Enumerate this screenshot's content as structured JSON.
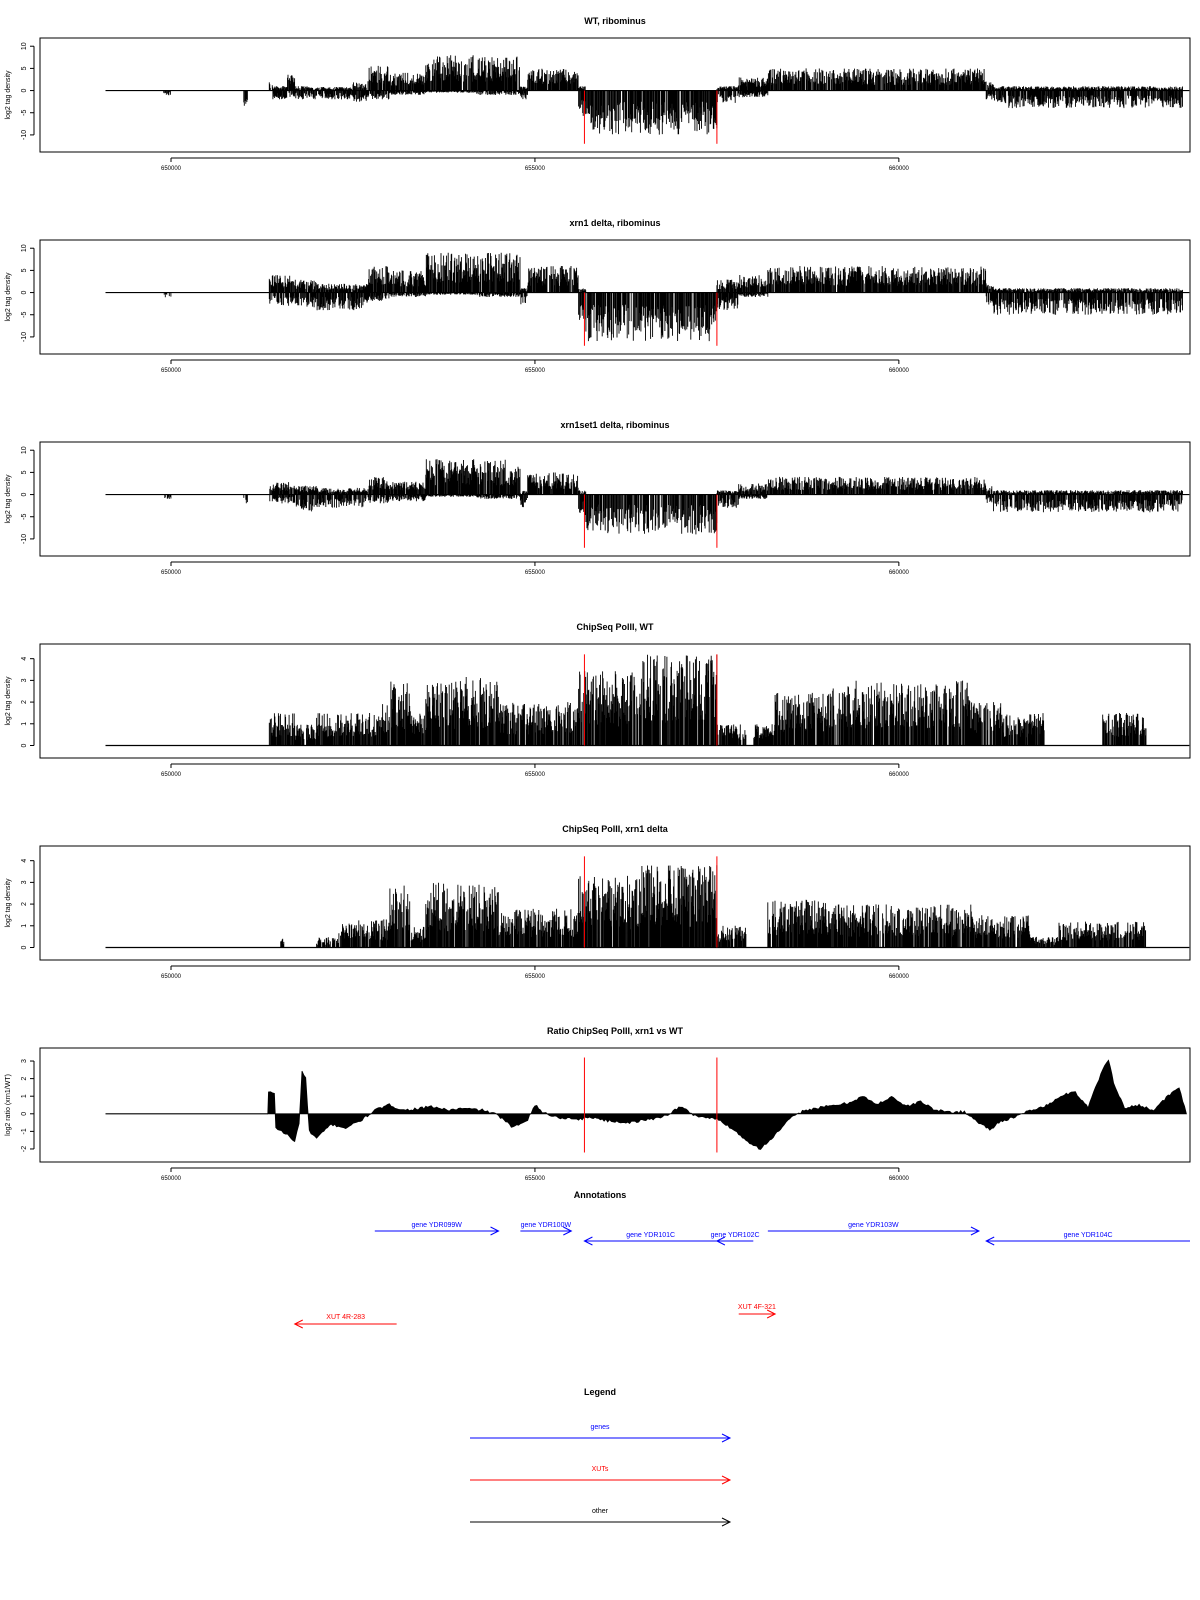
{
  "chart_data": [
    {
      "type": "bar",
      "title": "WT, ribominus",
      "ylabel": "log2 tag density",
      "xlim": [
        648200,
        664000
      ],
      "ylim": [
        -12.5,
        10.5
      ],
      "yticks": [
        10,
        5,
        0,
        -5,
        -10
      ],
      "ytick_labels": [
        "10",
        "5",
        "0",
        "-5",
        "-10"
      ],
      "xticks": [
        650000,
        655000,
        660000
      ],
      "xtick_labels": [
        "650000",
        "655000",
        "660000"
      ],
      "baseline_x": [
        649100,
        663990
      ],
      "vlines_red": [
        655680,
        657500
      ],
      "vline_range": [
        -12,
        0
      ],
      "profile": [
        [
          649000,
          649900,
          0,
          0
        ],
        [
          649900,
          650000,
          0,
          -1.2
        ],
        [
          650000,
          651000,
          0,
          0
        ],
        [
          651000,
          651050,
          0,
          -4
        ],
        [
          651350,
          651400,
          2,
          0
        ],
        [
          651400,
          651600,
          1,
          -2
        ],
        [
          651600,
          651700,
          4,
          -1.5
        ],
        [
          651700,
          652000,
          1,
          -2
        ],
        [
          652000,
          652500,
          0.8,
          -2
        ],
        [
          652500,
          652700,
          2,
          -2.5
        ],
        [
          652700,
          653000,
          6,
          -2
        ],
        [
          653000,
          653500,
          4,
          -1
        ],
        [
          653500,
          654200,
          8,
          -0.5
        ],
        [
          654200,
          654800,
          8,
          -1
        ],
        [
          654800,
          654900,
          1,
          -2
        ],
        [
          654900,
          655600,
          5,
          0
        ],
        [
          655600,
          655700,
          1,
          -6
        ],
        [
          655700,
          657500,
          0,
          -10
        ],
        [
          657500,
          657800,
          1,
          -3
        ],
        [
          657800,
          658200,
          3,
          -1.5
        ],
        [
          658200,
          659400,
          5,
          0
        ],
        [
          659400,
          661200,
          5,
          0
        ],
        [
          661200,
          661300,
          2,
          -2
        ],
        [
          661300,
          663900,
          1,
          -4
        ]
      ]
    },
    {
      "type": "bar",
      "title": "xrn1 delta, ribominus",
      "ylabel": "log2 tag density",
      "xlim": [
        648200,
        664000
      ],
      "ylim": [
        -12.5,
        10.5
      ],
      "yticks": [
        10,
        5,
        0,
        -5,
        -10
      ],
      "ytick_labels": [
        "10",
        "5",
        "0",
        "-5",
        "-10"
      ],
      "xticks": [
        650000,
        655000,
        660000
      ],
      "xtick_labels": [
        "650000",
        "655000",
        "660000"
      ],
      "baseline_x": [
        649100,
        663990
      ],
      "vlines_red": [
        655680,
        657500
      ],
      "vline_range": [
        -12,
        0
      ],
      "profile": [
        [
          649000,
          649900,
          0,
          0
        ],
        [
          649900,
          650000,
          0,
          -1.2
        ],
        [
          650000,
          651350,
          0,
          0
        ],
        [
          651350,
          651700,
          4,
          -3
        ],
        [
          651700,
          652000,
          3,
          -3.5
        ],
        [
          652000,
          652700,
          2,
          -4
        ],
        [
          652700,
          653000,
          6,
          -2
        ],
        [
          653000,
          653500,
          5,
          -1
        ],
        [
          653500,
          654200,
          9,
          -0.5
        ],
        [
          654200,
          654800,
          9,
          -1
        ],
        [
          654800,
          654900,
          1,
          -3
        ],
        [
          654900,
          655600,
          6,
          0
        ],
        [
          655600,
          655700,
          1,
          -7
        ],
        [
          655700,
          657500,
          0,
          -11
        ],
        [
          657500,
          657800,
          3,
          -4
        ],
        [
          657800,
          658200,
          4,
          -1
        ],
        [
          658200,
          659400,
          6,
          0
        ],
        [
          659400,
          661200,
          6,
          0
        ],
        [
          661200,
          661300,
          2,
          -3
        ],
        [
          661300,
          663900,
          1,
          -5
        ]
      ]
    },
    {
      "type": "bar",
      "title": "xrn1set1 delta, ribominus",
      "ylabel": "log2 tag density",
      "xlim": [
        648200,
        664000
      ],
      "ylim": [
        -12.5,
        10.5
      ],
      "yticks": [
        10,
        5,
        0,
        -5,
        -10
      ],
      "ytick_labels": [
        "10",
        "5",
        "0",
        "-5",
        "-10"
      ],
      "xticks": [
        650000,
        655000,
        660000
      ],
      "xtick_labels": [
        "650000",
        "655000",
        "660000"
      ],
      "baseline_x": [
        649100,
        663990
      ],
      "vlines_red": [
        655680,
        657500
      ],
      "vline_range": [
        -12,
        0
      ],
      "profile": [
        [
          649000,
          649900,
          0,
          0
        ],
        [
          649900,
          650000,
          0,
          -1.2
        ],
        [
          650000,
          651000,
          0,
          0
        ],
        [
          651000,
          651050,
          0,
          -2
        ],
        [
          651350,
          651700,
          3,
          -2
        ],
        [
          651700,
          652000,
          2,
          -4
        ],
        [
          652000,
          652700,
          1.5,
          -3
        ],
        [
          652700,
          653000,
          4,
          -2
        ],
        [
          653000,
          653500,
          3,
          -1.5
        ],
        [
          653500,
          654200,
          8,
          -0.5
        ],
        [
          654200,
          654800,
          8,
          -1
        ],
        [
          654800,
          654900,
          1,
          -3
        ],
        [
          654900,
          655600,
          5,
          0
        ],
        [
          655600,
          655700,
          1,
          -5
        ],
        [
          655700,
          657500,
          0,
          -9
        ],
        [
          657500,
          657800,
          1,
          -3
        ],
        [
          657800,
          658200,
          2.5,
          -1
        ],
        [
          658200,
          659400,
          4,
          0
        ],
        [
          659400,
          661200,
          4,
          0
        ],
        [
          661200,
          661300,
          2,
          -2
        ],
        [
          661300,
          663900,
          1,
          -4
        ]
      ]
    },
    {
      "type": "bar",
      "title": "ChipSeq PolII, WT",
      "ylabel": "log2 tag density",
      "xlim": [
        648200,
        664000
      ],
      "ylim": [
        -0.3,
        4.4
      ],
      "yticks": [
        0,
        1,
        2,
        3,
        4
      ],
      "ytick_labels": [
        "0",
        "1",
        "2",
        "3",
        "4"
      ],
      "xticks": [
        650000,
        655000,
        660000
      ],
      "xtick_labels": [
        "650000",
        "655000",
        "660000"
      ],
      "baseline_x": [
        649100,
        663990
      ],
      "vlines_red": [
        655680,
        657500
      ],
      "vline_range": [
        0,
        4.2
      ],
      "profile": [
        [
          651350,
          651700,
          1.5,
          0
        ],
        [
          651700,
          652000,
          1,
          0
        ],
        [
          652000,
          652900,
          1.5,
          0
        ],
        [
          652900,
          653000,
          2,
          0
        ],
        [
          653000,
          653300,
          3,
          0
        ],
        [
          653300,
          653500,
          1.5,
          0
        ],
        [
          653500,
          654000,
          3,
          0
        ],
        [
          654000,
          654500,
          3.2,
          0
        ],
        [
          654500,
          655600,
          2,
          0
        ],
        [
          655600,
          656400,
          3.5,
          0
        ],
        [
          656400,
          657500,
          4.2,
          0
        ],
        [
          657500,
          657900,
          1,
          0
        ],
        [
          658000,
          658300,
          1,
          0
        ],
        [
          658300,
          659000,
          2.5,
          0
        ],
        [
          659000,
          661000,
          3,
          0
        ],
        [
          661000,
          661400,
          2,
          0
        ],
        [
          661400,
          662000,
          1.5,
          0
        ],
        [
          662000,
          662800,
          0,
          0
        ],
        [
          662800,
          663400,
          1.5,
          0
        ]
      ]
    },
    {
      "type": "bar",
      "title": "ChipSeq PolII, xrn1 delta",
      "ylabel": "log2 tag density",
      "xlim": [
        648200,
        664000
      ],
      "ylim": [
        -0.3,
        4.4
      ],
      "yticks": [
        0,
        1,
        2,
        3,
        4
      ],
      "ytick_labels": [
        "0",
        "1",
        "2",
        "3",
        "4"
      ],
      "xticks": [
        650000,
        655000,
        660000
      ],
      "xtick_labels": [
        "650000",
        "655000",
        "660000"
      ],
      "baseline_x": [
        649100,
        663990
      ],
      "vlines_red": [
        655680,
        657500
      ],
      "vline_range": [
        0,
        4.2
      ],
      "profile": [
        [
          651500,
          651550,
          0.5,
          0
        ],
        [
          652000,
          652300,
          0.5,
          0
        ],
        [
          652300,
          653000,
          1.3,
          0
        ],
        [
          653000,
          653300,
          3,
          0
        ],
        [
          653300,
          653500,
          1,
          0
        ],
        [
          653500,
          654000,
          3,
          0
        ],
        [
          654000,
          654500,
          3,
          0
        ],
        [
          654500,
          655600,
          1.8,
          0
        ],
        [
          655600,
          656400,
          3.3,
          0
        ],
        [
          656400,
          657500,
          3.8,
          0
        ],
        [
          657500,
          657900,
          1,
          0
        ],
        [
          658200,
          659000,
          2.2,
          0
        ],
        [
          659000,
          661000,
          2,
          0
        ],
        [
          661000,
          661800,
          1.5,
          0
        ],
        [
          661800,
          662200,
          0.5,
          0
        ],
        [
          662200,
          663400,
          1.2,
          0
        ]
      ]
    },
    {
      "type": "area",
      "title": "Ratio ChipSeq PolII, xrn1 vs WT",
      "ylabel": "log2 ratio (xrn1/WT)",
      "xlim": [
        648200,
        664000
      ],
      "ylim": [
        -2.4,
        3.4
      ],
      "yticks": [
        3,
        2,
        1,
        0,
        -1,
        -2
      ],
      "ytick_labels": [
        "3",
        "2",
        "1",
        "0",
        "-1",
        "-2"
      ],
      "xticks": [
        650000,
        655000,
        660000
      ],
      "xtick_labels": [
        "650000",
        "655000",
        "660000"
      ],
      "baseline_x": [
        649100,
        651330
      ],
      "vlines_red": [
        655680,
        657500
      ],
      "vline_range": [
        -2.2,
        3.2
      ],
      "curve": [
        [
          651330,
          0
        ],
        [
          651340,
          1.2
        ],
        [
          651420,
          1.2
        ],
        [
          651440,
          -0.8
        ],
        [
          651600,
          -1.2
        ],
        [
          651700,
          -1.6
        ],
        [
          651760,
          -0.5
        ],
        [
          651800,
          2.4
        ],
        [
          651850,
          2.0
        ],
        [
          651900,
          -1.0
        ],
        [
          652000,
          -1.4
        ],
        [
          652100,
          -1.0
        ],
        [
          652200,
          -0.6
        ],
        [
          652400,
          -0.8
        ],
        [
          652600,
          -0.4
        ],
        [
          652800,
          0.2
        ],
        [
          653000,
          0.5
        ],
        [
          653200,
          0.2
        ],
        [
          653400,
          0.3
        ],
        [
          653600,
          0.4
        ],
        [
          653800,
          0.2
        ],
        [
          654000,
          0.3
        ],
        [
          654300,
          0.2
        ],
        [
          654500,
          -0.1
        ],
        [
          654700,
          -0.8
        ],
        [
          654900,
          -0.3
        ],
        [
          655000,
          0.5
        ],
        [
          655100,
          0.1
        ],
        [
          655300,
          -0.2
        ],
        [
          655600,
          -0.3
        ],
        [
          655800,
          -0.2
        ],
        [
          656000,
          -0.4
        ],
        [
          656300,
          -0.5
        ],
        [
          656600,
          -0.3
        ],
        [
          656800,
          -0.1
        ],
        [
          657000,
          0.4
        ],
        [
          657200,
          -0.1
        ],
        [
          657500,
          -0.3
        ],
        [
          657700,
          -0.8
        ],
        [
          657900,
          -1.5
        ],
        [
          658100,
          -2.0
        ],
        [
          658300,
          -1.2
        ],
        [
          658500,
          -0.3
        ],
        [
          658700,
          0.2
        ],
        [
          659000,
          0.4
        ],
        [
          659300,
          0.6
        ],
        [
          659500,
          1.0
        ],
        [
          659700,
          0.5
        ],
        [
          659900,
          1.0
        ],
        [
          660100,
          0.4
        ],
        [
          660300,
          0.7
        ],
        [
          660500,
          0.2
        ],
        [
          660700,
          0.1
        ],
        [
          660900,
          0.1
        ],
        [
          661100,
          -0.5
        ],
        [
          661250,
          -0.9
        ],
        [
          661400,
          -0.4
        ],
        [
          661600,
          -0.2
        ],
        [
          661800,
          0.2
        ],
        [
          662000,
          0.4
        ],
        [
          662200,
          0.9
        ],
        [
          662400,
          1.3
        ],
        [
          662600,
          0.4
        ],
        [
          662800,
          2.5
        ],
        [
          662880,
          3.1
        ],
        [
          662950,
          1.8
        ],
        [
          663100,
          0.3
        ],
        [
          663300,
          0.5
        ],
        [
          663500,
          0.2
        ],
        [
          663700,
          1.0
        ],
        [
          663850,
          1.5
        ],
        [
          663950,
          0
        ]
      ]
    }
  ],
  "annotations": {
    "title": "Annotations",
    "genes": [
      {
        "label": "gene YDR099W",
        "start": 652800,
        "end": 654500,
        "direction": "right",
        "row": 0
      },
      {
        "label": "gene YDR100W",
        "start": 654800,
        "end": 655500,
        "direction": "right",
        "row": 0
      },
      {
        "label": "gene YDR101C",
        "start": 655680,
        "end": 657500,
        "direction": "left",
        "row": 1
      },
      {
        "label": "gene YDR102C",
        "start": 657500,
        "end": 658000,
        "direction": "left",
        "row": 1
      },
      {
        "label": "gene YDR103W",
        "start": 658200,
        "end": 661100,
        "direction": "right",
        "row": 0
      },
      {
        "label": "gene YDR104C",
        "start": 661200,
        "end": 664000,
        "direction": "left",
        "row": 1
      }
    ],
    "xuts": [
      {
        "label": "XUT 4R-283",
        "start": 651700,
        "end": 653100,
        "direction": "left"
      },
      {
        "label": "XUT 4F-321",
        "start": 657800,
        "end": 658300,
        "direction": "right"
      }
    ]
  },
  "legend": {
    "title": "Legend",
    "items": [
      {
        "label": "genes",
        "color": "#0000ff"
      },
      {
        "label": "XUTs",
        "color": "#ff0000"
      },
      {
        "label": "other",
        "color": "#000000"
      }
    ]
  },
  "colors": {
    "genes": "#0000ff",
    "xuts": "#ff0000",
    "marker": "#ff0000",
    "data": "#000000"
  }
}
